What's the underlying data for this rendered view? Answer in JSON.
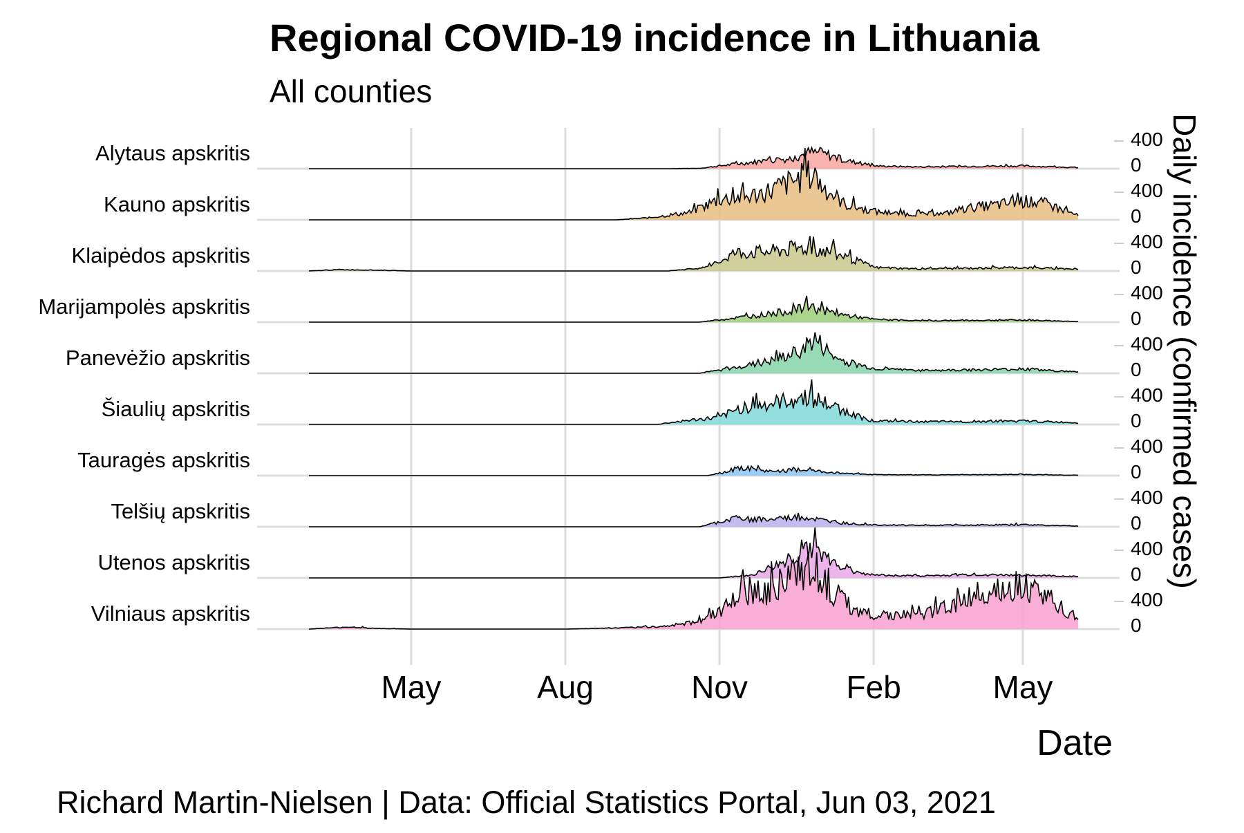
{
  "chart_data": {
    "type": "area",
    "title": "Regional COVID-19 incidence in Lithuania",
    "subtitle": "All counties",
    "xlabel": "Date",
    "ylabel": "Daily incidence (confirmed cases)",
    "caption": "Richard Martin-Nielsen | Data: Official Statistics Portal, Jun 03, 2021",
    "x_range": [
      "2020-03-01",
      "2021-06-03"
    ],
    "x_ticks": [
      {
        "label": "May",
        "date": "2020-05-01"
      },
      {
        "label": "Aug",
        "date": "2020-08-01"
      },
      {
        "label": "Nov",
        "date": "2020-11-01"
      },
      {
        "label": "Feb",
        "date": "2021-02-01"
      },
      {
        "label": "May",
        "date": "2021-05-01"
      }
    ],
    "y_ticks": [
      "0",
      "400"
    ],
    "y_tick_values": [
      0,
      400
    ],
    "grid": true,
    "series": [
      {
        "name": "Alytaus apskritis",
        "color": "#f8a5a0",
        "x": [
          "2020-03-01",
          "2020-10-01",
          "2020-10-20",
          "2020-11-01",
          "2020-11-15",
          "2020-12-01",
          "2020-12-15",
          "2020-12-25",
          "2021-01-05",
          "2021-01-15",
          "2021-02-01",
          "2021-03-01",
          "2021-04-01",
          "2021-05-01",
          "2021-06-03"
        ],
        "values": [
          0,
          0,
          5,
          40,
          80,
          120,
          150,
          240,
          200,
          120,
          40,
          25,
          35,
          40,
          15
        ]
      },
      {
        "name": "Kauno apskritis",
        "color": "#e8bd80",
        "x": [
          "2020-03-01",
          "2020-09-01",
          "2020-09-20",
          "2020-10-15",
          "2020-11-01",
          "2020-11-15",
          "2020-12-01",
          "2020-12-15",
          "2020-12-25",
          "2021-01-05",
          "2021-01-15",
          "2021-02-01",
          "2021-02-20",
          "2021-03-15",
          "2021-04-01",
          "2021-04-20",
          "2021-05-01",
          "2021-05-15",
          "2021-06-03"
        ],
        "values": [
          0,
          0,
          30,
          110,
          300,
          320,
          420,
          560,
          650,
          420,
          220,
          120,
          80,
          90,
          180,
          230,
          270,
          230,
          60
        ]
      },
      {
        "name": "Klaipėdos apskritis",
        "color": "#c8c88c",
        "x": [
          "2020-03-01",
          "2020-03-20",
          "2020-04-15",
          "2020-05-01",
          "2020-10-01",
          "2020-10-25",
          "2020-11-10",
          "2020-12-01",
          "2020-12-15",
          "2020-12-25",
          "2021-01-10",
          "2021-01-25",
          "2021-02-01",
          "2021-03-01",
          "2021-04-01",
          "2021-05-01",
          "2021-06-03"
        ],
        "values": [
          0,
          20,
          10,
          0,
          0,
          50,
          260,
          280,
          320,
          340,
          240,
          120,
          50,
          30,
          40,
          50,
          25
        ]
      },
      {
        "name": "Marijampolės apskritis",
        "color": "#9ccc78",
        "x": [
          "2020-03-01",
          "2020-10-20",
          "2020-11-10",
          "2020-12-01",
          "2020-12-15",
          "2020-12-25",
          "2021-01-10",
          "2021-02-01",
          "2021-03-01",
          "2021-04-01",
          "2021-05-01",
          "2021-06-03"
        ],
        "values": [
          0,
          0,
          60,
          120,
          170,
          220,
          120,
          40,
          20,
          25,
          30,
          10
        ]
      },
      {
        "name": "Panevėžio apskritis",
        "color": "#86d4a8",
        "x": [
          "2020-03-01",
          "2020-10-20",
          "2020-11-10",
          "2020-12-01",
          "2020-12-15",
          "2020-12-28",
          "2021-01-10",
          "2021-02-01",
          "2021-03-01",
          "2021-04-01",
          "2021-05-01",
          "2021-06-03"
        ],
        "values": [
          0,
          0,
          80,
          170,
          280,
          480,
          200,
          70,
          40,
          50,
          60,
          20
        ]
      },
      {
        "name": "Šiaulių apskritis",
        "color": "#80d8d8",
        "x": [
          "2020-03-01",
          "2020-09-25",
          "2020-10-10",
          "2020-11-01",
          "2020-11-15",
          "2020-12-01",
          "2020-12-15",
          "2020-12-25",
          "2021-01-10",
          "2021-01-25",
          "2021-02-01",
          "2021-03-01",
          "2021-04-01",
          "2021-05-01",
          "2021-06-03"
        ],
        "values": [
          0,
          0,
          50,
          100,
          250,
          290,
          360,
          400,
          230,
          100,
          50,
          40,
          40,
          50,
          25
        ]
      },
      {
        "name": "Tauragės apskritis",
        "color": "#8cc4f0",
        "x": [
          "2020-03-01",
          "2020-10-25",
          "2020-11-05",
          "2020-11-15",
          "2020-12-01",
          "2020-12-20",
          "2021-01-10",
          "2021-02-01",
          "2021-03-01",
          "2021-04-01",
          "2021-05-01",
          "2021-06-03"
        ],
        "values": [
          0,
          0,
          60,
          120,
          60,
          80,
          40,
          15,
          10,
          12,
          15,
          5
        ]
      },
      {
        "name": "Telšių apskritis",
        "color": "#b8b0ec",
        "x": [
          "2020-03-01",
          "2020-10-20",
          "2020-11-10",
          "2020-12-01",
          "2020-12-20",
          "2021-01-10",
          "2021-02-01",
          "2021-03-01",
          "2021-04-01",
          "2021-05-01",
          "2021-06-03"
        ],
        "values": [
          0,
          0,
          120,
          100,
          140,
          60,
          30,
          20,
          25,
          30,
          10
        ]
      },
      {
        "name": "Utenos apskritis",
        "color": "#e8a8e8",
        "x": [
          "2020-03-01",
          "2020-11-01",
          "2020-11-20",
          "2020-12-05",
          "2020-12-18",
          "2020-12-25",
          "2021-01-05",
          "2021-01-20",
          "2021-02-01",
          "2021-03-01",
          "2021-04-01",
          "2021-05-01",
          "2021-06-03"
        ],
        "values": [
          0,
          0,
          40,
          180,
          300,
          480,
          250,
          100,
          40,
          30,
          45,
          40,
          20
        ]
      },
      {
        "name": "Vilniaus apskritis",
        "color": "#f8a0d0",
        "x": [
          "2020-03-01",
          "2020-03-25",
          "2020-04-10",
          "2020-05-01",
          "2020-08-01",
          "2020-09-01",
          "2020-10-01",
          "2020-10-20",
          "2020-11-01",
          "2020-11-15",
          "2020-12-01",
          "2020-12-15",
          "2020-12-25",
          "2021-01-05",
          "2021-01-20",
          "2021-02-01",
          "2021-03-01",
          "2021-03-20",
          "2021-04-01",
          "2021-04-15",
          "2021-05-01",
          "2021-05-15",
          "2021-06-03"
        ],
        "values": [
          0,
          30,
          10,
          0,
          0,
          15,
          40,
          120,
          250,
          480,
          560,
          760,
          980,
          580,
          300,
          200,
          200,
          350,
          460,
          580,
          650,
          440,
          150
        ]
      }
    ]
  }
}
